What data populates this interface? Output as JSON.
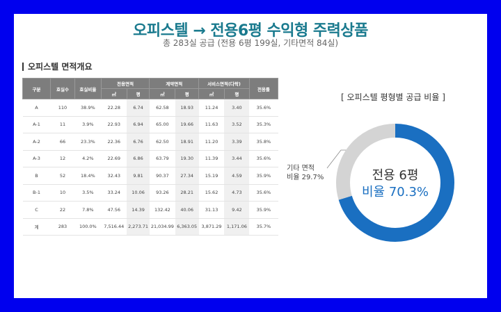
{
  "header": {
    "title": "오피스텔 → 전용6평 수익형 주력상품",
    "subtitle": "총 283실 공급 (전용 6평 199실, 기타면적 84실)"
  },
  "table": {
    "section_title": "오피스텔 면적개요",
    "headers": {
      "type": "구분",
      "units": "호실수",
      "ratio": "호실비율",
      "exclusive": "전용면적",
      "contract": "계약면적",
      "service": "서비스면적(다락)",
      "efficiency": "전용률",
      "sqm": "㎡",
      "pyeong": "평"
    },
    "rows": [
      [
        "A",
        "110",
        "38.9%",
        "22.28",
        "6.74",
        "62.58",
        "18.93",
        "11.24",
        "3.40",
        "35.6%"
      ],
      [
        "A-1",
        "11",
        "3.9%",
        "22.93",
        "6.94",
        "65.00",
        "19.66",
        "11.63",
        "3.52",
        "35.3%"
      ],
      [
        "A-2",
        "66",
        "23.3%",
        "22.36",
        "6.76",
        "62.50",
        "18.91",
        "11.20",
        "3.39",
        "35.8%"
      ],
      [
        "A-3",
        "12",
        "4.2%",
        "22.69",
        "6.86",
        "63.79",
        "19.30",
        "11.39",
        "3.44",
        "35.6%"
      ],
      [
        "B",
        "52",
        "18.4%",
        "32.43",
        "9.81",
        "90.37",
        "27.34",
        "15.19",
        "4.59",
        "35.9%"
      ],
      [
        "B-1",
        "10",
        "3.5%",
        "33.24",
        "10.06",
        "93.26",
        "28.21",
        "15.62",
        "4.73",
        "35.6%"
      ],
      [
        "C",
        "22",
        "7.8%",
        "47.56",
        "14.39",
        "132.42",
        "40.06",
        "31.13",
        "9.42",
        "35.9%"
      ],
      [
        "계",
        "283",
        "100.0%",
        "7,516.44",
        "2,273.71",
        "21,034.99",
        "6,363.05",
        "3,871.29",
        "1,171.06",
        "35.7%"
      ]
    ]
  },
  "chart_data": {
    "type": "pie",
    "title": "[ 오피스텔 평형별 공급 비율 ]",
    "categories": [
      "전용 6평",
      "기타 면적"
    ],
    "values": [
      70.3,
      29.7
    ],
    "colors": [
      "#1a6fc1",
      "#d4d4d4"
    ],
    "labels": {
      "main_name": "전용 6평",
      "main_value": "비율 70.3%",
      "other_name": "기타 면적",
      "other_value": "비율 29.7%"
    }
  }
}
